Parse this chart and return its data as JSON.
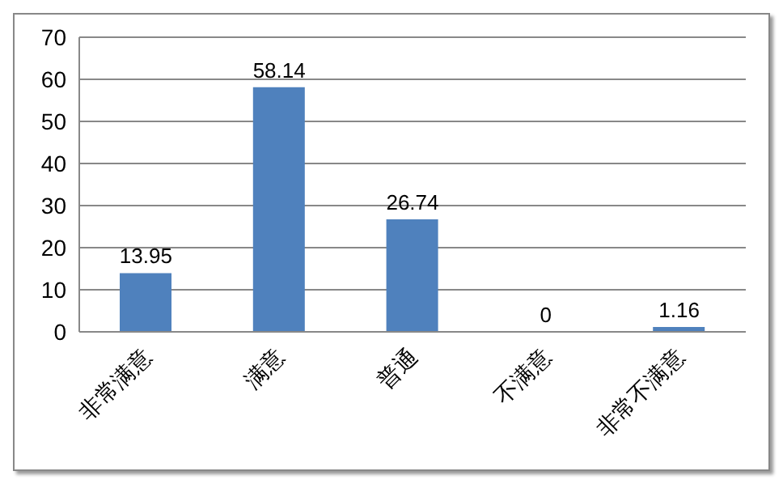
{
  "chart_data": {
    "type": "bar",
    "categories": [
      "非常满意",
      "满意",
      "普通",
      "不满意",
      "非常不满意"
    ],
    "values": [
      13.95,
      58.14,
      26.74,
      0,
      1.16
    ],
    "color": "#4f81bd",
    "ylim": [
      0,
      70
    ],
    "yticks": [
      0,
      10,
      20,
      30,
      40,
      50,
      60,
      70
    ],
    "grid": "y",
    "data_labels": true
  }
}
